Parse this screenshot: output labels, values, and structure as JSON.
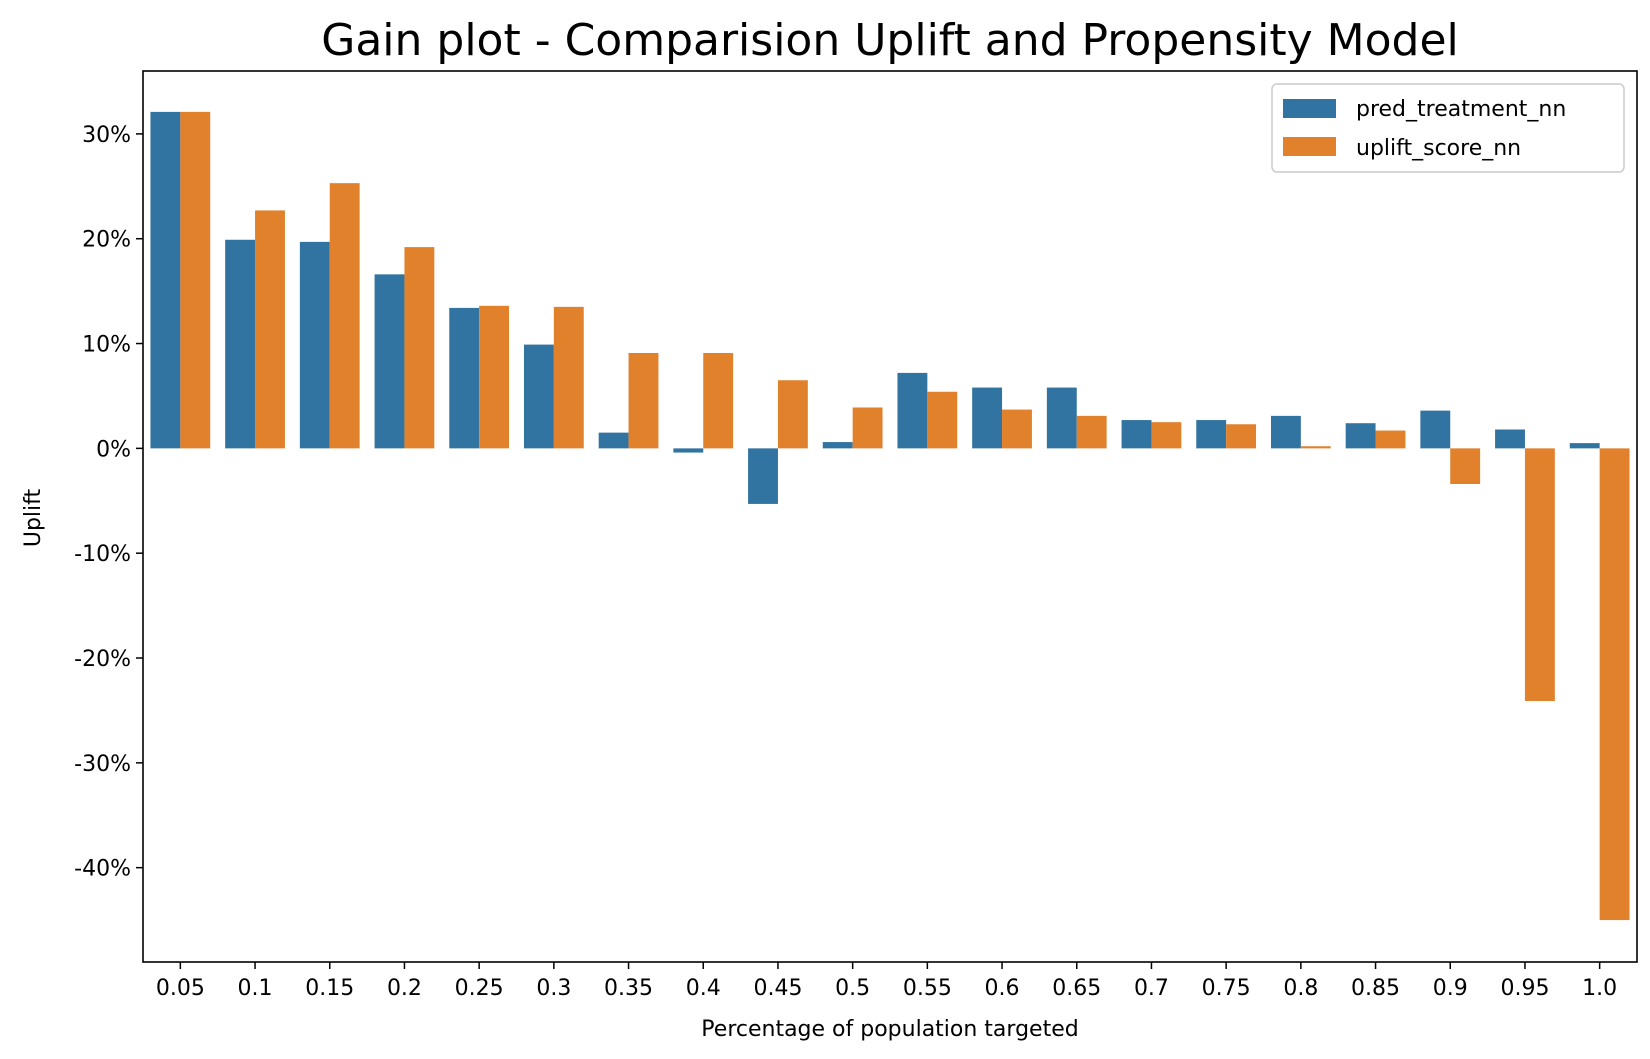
{
  "chart_data": {
    "type": "bar",
    "title": "Gain plot - Comparision Uplift and Propensity Model",
    "xlabel": "Percentage of population targeted",
    "ylabel": "Uplift",
    "categories": [
      "0.05",
      "0.1",
      "0.15",
      "0.2",
      "0.25",
      "0.3",
      "0.35",
      "0.4",
      "0.45",
      "0.5",
      "0.55",
      "0.6",
      "0.65",
      "0.7",
      "0.75",
      "0.8",
      "0.85",
      "0.9",
      "0.95",
      "1.0"
    ],
    "ylim": [
      -49,
      36
    ],
    "yticks": [
      30,
      20,
      10,
      0,
      -10,
      -20,
      -30,
      -40
    ],
    "ytick_labels": [
      "30%",
      "20%",
      "10%",
      "0%",
      "-10%",
      "-20%",
      "-30%",
      "-40%"
    ],
    "series": [
      {
        "name": "pred_treatment_nn",
        "color": "#3274a1",
        "values": [
          32.1,
          19.9,
          19.7,
          16.6,
          13.4,
          9.9,
          1.5,
          -0.4,
          -5.3,
          0.6,
          7.2,
          5.8,
          5.8,
          2.7,
          2.7,
          3.1,
          2.4,
          3.6,
          1.8,
          0.5
        ]
      },
      {
        "name": "uplift_score_nn",
        "color": "#e1812c",
        "values": [
          32.1,
          22.7,
          25.3,
          19.2,
          13.6,
          13.5,
          9.1,
          9.1,
          6.5,
          3.9,
          5.4,
          3.7,
          3.1,
          2.5,
          2.3,
          0.2,
          1.7,
          -3.4,
          -24.1,
          -45.0
        ]
      }
    ],
    "grid": false,
    "legend_position": "top-right"
  }
}
